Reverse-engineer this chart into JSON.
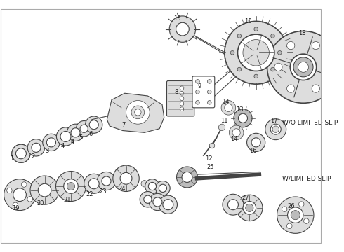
{
  "bg_color": "#ffffff",
  "line_color": "#444444",
  "dark_fill": "#888888",
  "med_fill": "#bbbbbb",
  "light_fill": "#dddddd",
  "text_color": "#222222",
  "wo_limited_slip": "W/O LIMITED SLIP",
  "w_limited_slip": "W/LIMITED SLIP"
}
